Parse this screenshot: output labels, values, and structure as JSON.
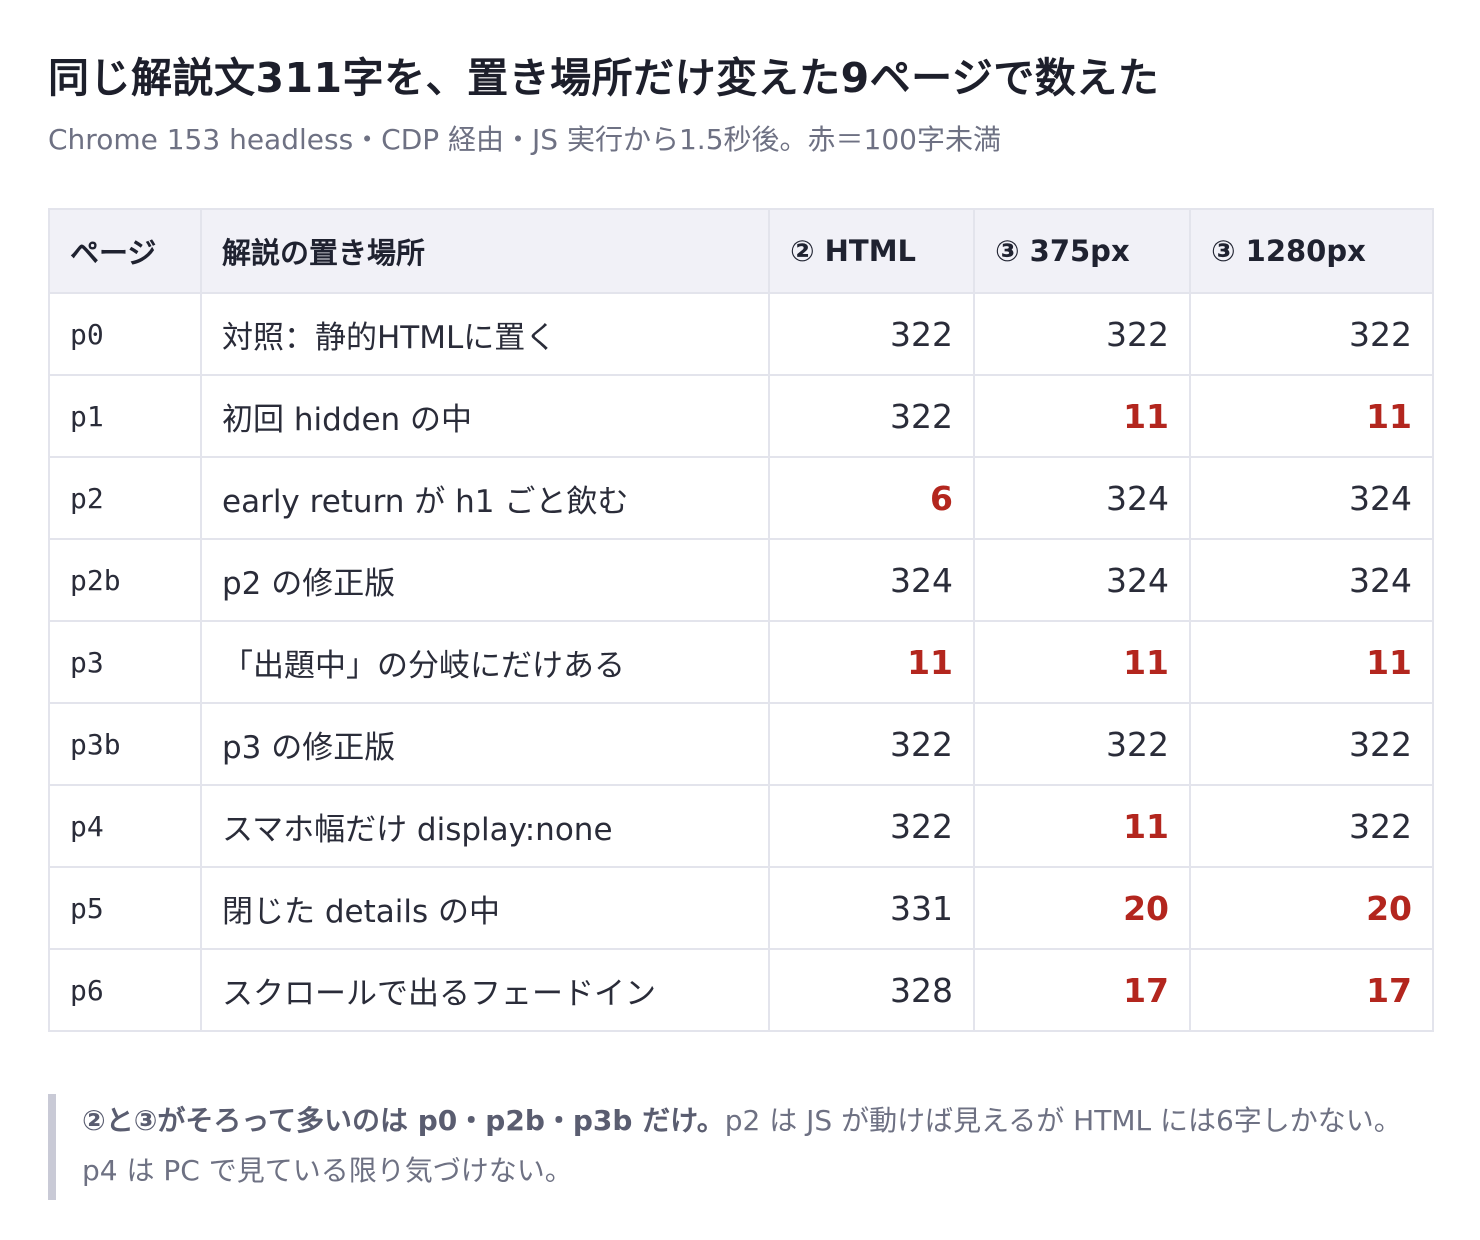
{
  "title": "同じ解説文311字を、置き場所だけ変えた9ページで数えた",
  "subtitle": "Chrome 153 headless・CDP 経由・JS 実行から1.5秒後。赤＝100字未満",
  "table": {
    "headers": [
      "ページ",
      "解説の置き場所",
      "② HTML",
      "③ 375px",
      "③ 1280px"
    ],
    "rows": [
      {
        "page": "p0",
        "place": "対照：静的HTMLに置く",
        "html": "322",
        "w375": "322",
        "w1280": "322"
      },
      {
        "page": "p1",
        "place": "初回 hidden の中",
        "html": "322",
        "w375": "11",
        "w1280": "11"
      },
      {
        "page": "p2",
        "place": "early return が h1 ごと飲む",
        "html": "6",
        "w375": "324",
        "w1280": "324"
      },
      {
        "page": "p2b",
        "place": "p2 の修正版",
        "html": "324",
        "w375": "324",
        "w1280": "324"
      },
      {
        "page": "p3",
        "place": "「出題中」の分岐にだけある",
        "html": "11",
        "w375": "11",
        "w1280": "11"
      },
      {
        "page": "p3b",
        "place": "p3 の修正版",
        "html": "322",
        "w375": "322",
        "w1280": "322"
      },
      {
        "page": "p4",
        "place": "スマホ幅だけ display:none",
        "html": "322",
        "w375": "11",
        "w1280": "322"
      },
      {
        "page": "p5",
        "place": "閉じた details の中",
        "html": "331",
        "w375": "20",
        "w1280": "20"
      },
      {
        "page": "p6",
        "place": "スクロールで出るフェードイン",
        "html": "328",
        "w375": "17",
        "w1280": "17"
      }
    ],
    "threshold": 100,
    "low_color": "#b3261e"
  },
  "note": {
    "bold": "②と③がそろって多いのは p0・p2b・p3b だけ。",
    "text": "p2 は JS が動けば見えるが HTML には6字しかない。p4 は PC で見ている限り気づけない。"
  }
}
